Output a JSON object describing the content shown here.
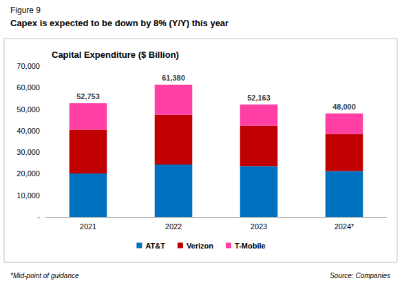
{
  "chart_data": {
    "type": "bar",
    "figure_label": "Figure 9",
    "title": "Capex is expected to be down by 8% (Y/Y) this year",
    "subtitle": "Capital Expenditure ($ Billion)",
    "footnote": "*Mid-point of guidance",
    "source": "Source: Companies",
    "categories": [
      "2021",
      "2022",
      "2023",
      "2024*"
    ],
    "series": [
      {
        "name": "AT&T",
        "color": "#0070C0",
        "values": [
          20141,
          24323,
          23595,
          21250
        ]
      },
      {
        "name": "Verizon",
        "color": "#C00000",
        "values": [
          20286,
          23087,
          18767,
          17250
        ]
      },
      {
        "name": "T-Mobile",
        "color": "#FF3FA4",
        "values": [
          12326,
          13970,
          9801,
          9500
        ]
      }
    ],
    "totals": [
      52753,
      61380,
      52163,
      48000
    ],
    "total_labels": [
      "52,753",
      "61,380",
      "52,163",
      "48,000"
    ],
    "ylim": [
      0,
      70000
    ],
    "yticks": [
      {
        "value": 0,
        "label": "-"
      },
      {
        "value": 10000,
        "label": "10,000"
      },
      {
        "value": 20000,
        "label": "20,000"
      },
      {
        "value": 30000,
        "label": "30,000"
      },
      {
        "value": 40000,
        "label": "40,000"
      },
      {
        "value": 50000,
        "label": "50,000"
      },
      {
        "value": 60000,
        "label": "60,000"
      },
      {
        "value": 70000,
        "label": "70,000"
      }
    ],
    "stacked": true,
    "grid": false,
    "legend": "bottom"
  }
}
